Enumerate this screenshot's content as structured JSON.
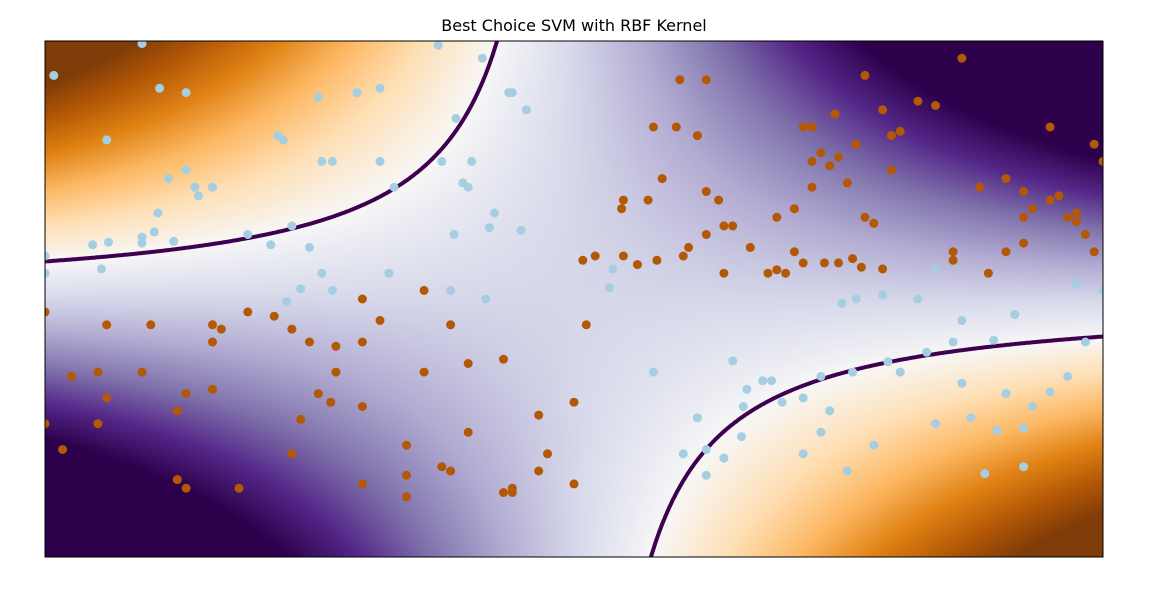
{
  "chart_data": {
    "type": "scatter",
    "title": "Best Choice SVM with RBF Kernel",
    "xlabel": "",
    "ylabel": "",
    "xlim": [
      -3,
      3
    ],
    "ylim": [
      -3,
      3
    ],
    "grid": false,
    "axis_ticks": false,
    "background": "decision function heatmap (PuOr colormap): purple = blue-class region, orange = orange-class region",
    "decision_boundary_color": "#3f0050",
    "series": [
      {
        "color": "#a6cee3",
        "points": [
          [
            -2.95,
            2.6
          ],
          [
            -2.45,
            2.97
          ],
          [
            -2.2,
            2.4
          ],
          [
            -2.35,
            2.45
          ],
          [
            -0.77,
            2.95
          ],
          [
            -1.45,
            2.35
          ],
          [
            -1.23,
            2.4
          ],
          [
            -0.52,
            2.8
          ],
          [
            -0.35,
            2.4
          ],
          [
            -0.37,
            2.4
          ],
          [
            -0.67,
            2.1
          ],
          [
            -2.65,
            1.85
          ],
          [
            -1.65,
            1.85
          ],
          [
            -1.68,
            1.9
          ],
          [
            -1.1,
            2.45
          ],
          [
            -0.27,
            2.2
          ],
          [
            -1.1,
            1.6
          ],
          [
            -1.37,
            1.6
          ],
          [
            -1.43,
            1.6
          ],
          [
            -0.63,
            1.35
          ],
          [
            -0.6,
            1.3
          ],
          [
            -0.48,
            0.83
          ],
          [
            -0.45,
            1.0
          ],
          [
            -1.02,
            1.3
          ],
          [
            -0.75,
            1.6
          ],
          [
            -0.58,
            1.6
          ],
          [
            -2.13,
            1.2
          ],
          [
            -2.05,
            1.3
          ],
          [
            -2.2,
            1.5
          ],
          [
            -2.3,
            1.4
          ],
          [
            -2.15,
            1.3
          ],
          [
            -2.36,
            1.0
          ],
          [
            -2.38,
            0.78
          ],
          [
            -2.45,
            0.72
          ],
          [
            -2.45,
            0.65
          ],
          [
            -2.27,
            0.67
          ],
          [
            -2.64,
            0.66
          ],
          [
            -2.73,
            0.63
          ],
          [
            -3.0,
            0.5
          ],
          [
            -3.0,
            0.3
          ],
          [
            -2.68,
            0.35
          ],
          [
            -1.85,
            0.75
          ],
          [
            -1.72,
            0.63
          ],
          [
            -1.6,
            0.85
          ],
          [
            -1.5,
            0.6
          ],
          [
            -1.43,
            0.3
          ],
          [
            -1.55,
            0.12
          ],
          [
            -1.63,
            -0.03
          ],
          [
            -1.37,
            0.1
          ],
          [
            -1.05,
            0.3
          ],
          [
            -0.7,
            0.1
          ],
          [
            -0.68,
            0.75
          ],
          [
            -0.5,
            0.0
          ],
          [
            -0.3,
            0.8
          ],
          [
            0.2,
            0.13
          ],
          [
            0.22,
            0.35
          ],
          [
            0.45,
            -0.85
          ],
          [
            0.7,
            -1.38
          ],
          [
            0.9,
            -0.72
          ],
          [
            0.95,
            -1.6
          ],
          [
            0.98,
            -1.05
          ],
          [
            1.07,
            -0.95
          ],
          [
            1.18,
            -1.2
          ],
          [
            1.3,
            -1.8
          ],
          [
            1.4,
            -1.55
          ],
          [
            1.45,
            -1.3
          ],
          [
            1.55,
            -2.0
          ],
          [
            1.7,
            -1.7
          ],
          [
            1.78,
            -0.73
          ],
          [
            1.85,
            -0.85
          ],
          [
            2.05,
            -1.45
          ],
          [
            2.15,
            -0.5
          ],
          [
            2.2,
            -0.98
          ],
          [
            2.25,
            -1.38
          ],
          [
            2.33,
            -2.03
          ],
          [
            2.4,
            -1.53
          ],
          [
            2.45,
            -1.1
          ],
          [
            2.55,
            -1.5
          ],
          [
            2.6,
            -1.25
          ],
          [
            2.8,
            -0.9
          ],
          [
            2.9,
            -0.5
          ],
          [
            3.0,
            0.1
          ],
          [
            2.85,
            0.18
          ],
          [
            2.7,
            -1.08
          ],
          [
            2.55,
            -1.95
          ],
          [
            2.5,
            -0.18
          ],
          [
            2.38,
            -0.48
          ],
          [
            2.2,
            -0.25
          ],
          [
            2.0,
            -0.62
          ],
          [
            1.95,
            0.0
          ],
          [
            1.75,
            0.05
          ],
          [
            1.6,
            0.0
          ],
          [
            1.52,
            -0.05
          ],
          [
            1.4,
            -0.9
          ],
          [
            1.3,
            -1.15
          ],
          [
            2.05,
            0.35
          ],
          [
            1.58,
            -0.85
          ],
          [
            1.12,
            -0.95
          ],
          [
            0.96,
            -1.25
          ],
          [
            0.85,
            -1.85
          ],
          [
            0.75,
            -1.75
          ],
          [
            0.62,
            -1.8
          ],
          [
            0.75,
            -2.05
          ]
        ]
      },
      {
        "color": "#b35806",
        "points": [
          [
            0.6,
            2.55
          ],
          [
            0.45,
            2.0
          ],
          [
            0.58,
            2.0
          ],
          [
            0.75,
            2.55
          ],
          [
            0.7,
            1.9
          ],
          [
            0.5,
            1.4
          ],
          [
            0.27,
            1.05
          ],
          [
            0.28,
            1.15
          ],
          [
            0.42,
            1.15
          ],
          [
            0.75,
            1.25
          ],
          [
            0.82,
            1.15
          ],
          [
            0.85,
            0.85
          ],
          [
            0.47,
            0.45
          ],
          [
            0.36,
            0.4
          ],
          [
            0.28,
            0.5
          ],
          [
            0.12,
            0.5
          ],
          [
            0.05,
            0.45
          ],
          [
            0.62,
            0.5
          ],
          [
            0.65,
            0.6
          ],
          [
            0.75,
            0.75
          ],
          [
            0.85,
            0.3
          ],
          [
            1.0,
            0.6
          ],
          [
            1.1,
            0.3
          ],
          [
            1.15,
            0.95
          ],
          [
            1.2,
            0.3
          ],
          [
            1.35,
            1.6
          ],
          [
            1.45,
            1.55
          ],
          [
            1.3,
            2.0
          ],
          [
            1.35,
            2.0
          ],
          [
            1.4,
            1.7
          ],
          [
            1.35,
            1.3
          ],
          [
            1.25,
            1.05
          ],
          [
            1.25,
            0.55
          ],
          [
            1.5,
            1.65
          ],
          [
            1.55,
            1.35
          ],
          [
            1.65,
            0.95
          ],
          [
            1.8,
            1.9
          ],
          [
            1.85,
            1.95
          ],
          [
            1.8,
            1.5
          ],
          [
            1.65,
            2.6
          ],
          [
            1.48,
            2.15
          ],
          [
            2.2,
            2.8
          ],
          [
            2.3,
            1.3
          ],
          [
            2.45,
            1.4
          ],
          [
            2.55,
            1.25
          ],
          [
            2.6,
            1.05
          ],
          [
            2.7,
            1.15
          ],
          [
            2.8,
            0.95
          ],
          [
            2.55,
            0.95
          ],
          [
            2.9,
            0.75
          ],
          [
            2.95,
            0.55
          ],
          [
            2.85,
            0.9
          ],
          [
            3.0,
            1.6
          ],
          [
            2.95,
            1.8
          ],
          [
            1.6,
            1.8
          ],
          [
            1.75,
            2.2
          ],
          [
            1.95,
            2.3
          ],
          [
            2.05,
            2.25
          ],
          [
            2.7,
            2.0
          ],
          [
            2.75,
            1.2
          ],
          [
            2.85,
            1.0
          ],
          [
            1.75,
            0.35
          ],
          [
            2.15,
            0.45
          ],
          [
            2.45,
            0.55
          ],
          [
            2.15,
            0.55
          ],
          [
            2.55,
            0.65
          ],
          [
            2.35,
            0.3
          ],
          [
            1.7,
            0.88
          ],
          [
            1.58,
            0.47
          ],
          [
            1.63,
            0.37
          ],
          [
            1.5,
            0.42
          ],
          [
            1.42,
            0.42
          ],
          [
            1.3,
            0.42
          ],
          [
            1.15,
            0.34
          ],
          [
            0.9,
            0.85
          ],
          [
            -3.0,
            -0.15
          ],
          [
            -2.65,
            -0.3
          ],
          [
            -2.4,
            -0.3
          ],
          [
            -2.05,
            -0.3
          ],
          [
            -2.0,
            -0.35
          ],
          [
            -1.85,
            -0.15
          ],
          [
            -2.7,
            -0.85
          ],
          [
            -2.85,
            -0.9
          ],
          [
            -2.65,
            -1.15
          ],
          [
            -2.7,
            -1.45
          ],
          [
            -3.0,
            -1.45
          ],
          [
            -2.9,
            -1.75
          ],
          [
            -2.45,
            -0.85
          ],
          [
            -2.25,
            -1.3
          ],
          [
            -2.2,
            -1.1
          ],
          [
            -2.05,
            -1.05
          ],
          [
            -1.55,
            -1.4
          ],
          [
            -1.35,
            -0.55
          ],
          [
            -1.2,
            -0.5
          ],
          [
            -1.35,
            -0.85
          ],
          [
            -0.85,
            -0.85
          ],
          [
            -0.95,
            -1.7
          ],
          [
            -0.95,
            -2.3
          ],
          [
            -1.2,
            -1.25
          ],
          [
            -0.6,
            -1.55
          ],
          [
            -0.75,
            -1.95
          ],
          [
            -0.7,
            -2.0
          ],
          [
            -1.1,
            -0.25
          ],
          [
            -1.2,
            0.0
          ],
          [
            -0.85,
            0.1
          ],
          [
            -0.7,
            -0.3
          ],
          [
            -0.6,
            -0.75
          ],
          [
            -0.4,
            -0.7
          ],
          [
            -0.4,
            -2.25
          ],
          [
            -0.35,
            -2.2
          ],
          [
            -0.35,
            -2.25
          ],
          [
            -0.2,
            -2.0
          ],
          [
            -0.2,
            -1.35
          ],
          [
            -0.15,
            -1.8
          ],
          [
            0.0,
            -1.2
          ],
          [
            0.0,
            -2.15
          ],
          [
            0.07,
            -0.3
          ],
          [
            -1.2,
            -2.15
          ],
          [
            -0.95,
            -2.05
          ],
          [
            -1.6,
            -1.8
          ],
          [
            -1.45,
            -1.1
          ],
          [
            -1.38,
            -1.2
          ],
          [
            -2.25,
            -2.1
          ],
          [
            -2.2,
            -2.2
          ],
          [
            -1.9,
            -2.2
          ],
          [
            -2.05,
            -0.5
          ],
          [
            -1.7,
            -0.2
          ],
          [
            -1.6,
            -0.35
          ],
          [
            -1.5,
            -0.5
          ]
        ]
      }
    ]
  }
}
